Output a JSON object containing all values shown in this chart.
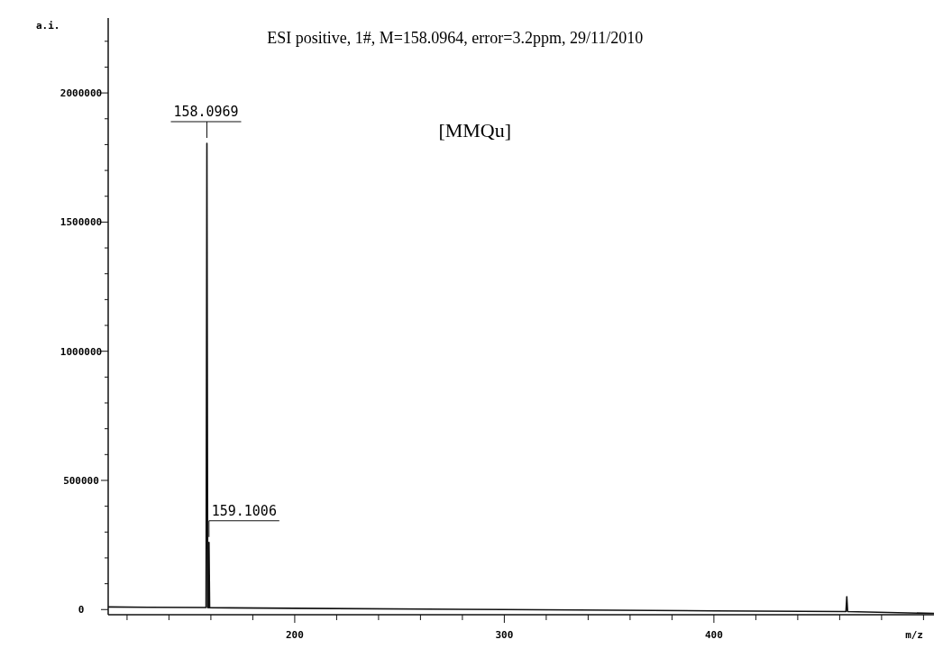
{
  "chart_data": {
    "type": "line",
    "title": "ESI positive, 1#, M=158.0964, error=3.2ppm, 29/11/2010",
    "xlabel": "m/z",
    "ylabel": "a.i.",
    "series": [
      {
        "color": "#111111",
        "x": [
          111,
          130,
          157.7,
          158.1,
          158.5,
          158.8,
          159.1,
          159.4,
          200,
          300,
          400,
          463,
          463.4,
          463.8,
          505
        ],
        "values": [
          10000,
          9000,
          8000,
          1805000,
          8000,
          7000,
          260000,
          7000,
          5000,
          0,
          -5000,
          -8000,
          50000,
          -8000,
          -15000
        ]
      }
    ],
    "annotations": [
      {
        "text": "158.0969",
        "x": 158.1,
        "y": 1805000
      },
      {
        "text": "159.1006",
        "x": 159.1,
        "y": 260000
      },
      "[MMQu]"
    ],
    "xlim": [
      111,
      505
    ],
    "ylim": [
      -20000,
      2290000
    ],
    "xticks": [
      {
        "value": 120,
        "label": null
      },
      {
        "value": 140,
        "label": null
      },
      {
        "value": 160,
        "label": null
      },
      {
        "value": 180,
        "label": null
      },
      200,
      {
        "value": 220,
        "label": null
      },
      {
        "value": 240,
        "label": null
      },
      {
        "value": 260,
        "label": null
      },
      {
        "value": 280,
        "label": null
      },
      300,
      {
        "value": 320,
        "label": null
      },
      {
        "value": 340,
        "label": null
      },
      {
        "value": 360,
        "label": null
      },
      {
        "value": 380,
        "label": null
      },
      400,
      {
        "value": 420,
        "label": null
      },
      {
        "value": 440,
        "label": null
      },
      {
        "value": 460,
        "label": null
      },
      {
        "value": 480,
        "label": null
      },
      {
        "value": 500,
        "label": null
      }
    ],
    "yticks": [
      0,
      {
        "value": 100000,
        "label": null
      },
      {
        "value": 200000,
        "label": null
      },
      {
        "value": 300000,
        "label": null
      },
      {
        "value": 400000,
        "label": null
      },
      500000,
      {
        "value": 600000,
        "label": null
      },
      {
        "value": 700000,
        "label": null
      },
      {
        "value": 800000,
        "label": null
      },
      {
        "value": 900000,
        "label": null
      },
      1000000,
      {
        "value": 1100000,
        "label": null
      },
      {
        "value": 1200000,
        "label": null
      },
      {
        "value": 1300000,
        "label": null
      },
      {
        "value": 1400000,
        "label": null
      },
      1500000,
      {
        "value": 1600000,
        "label": null
      },
      {
        "value": 1700000,
        "label": null
      },
      {
        "value": 1800000,
        "label": null
      },
      {
        "value": 1900000,
        "label": null
      },
      2000000,
      {
        "value": 2100000,
        "label": null
      },
      {
        "value": 2200000,
        "label": null
      }
    ],
    "grid": false
  }
}
